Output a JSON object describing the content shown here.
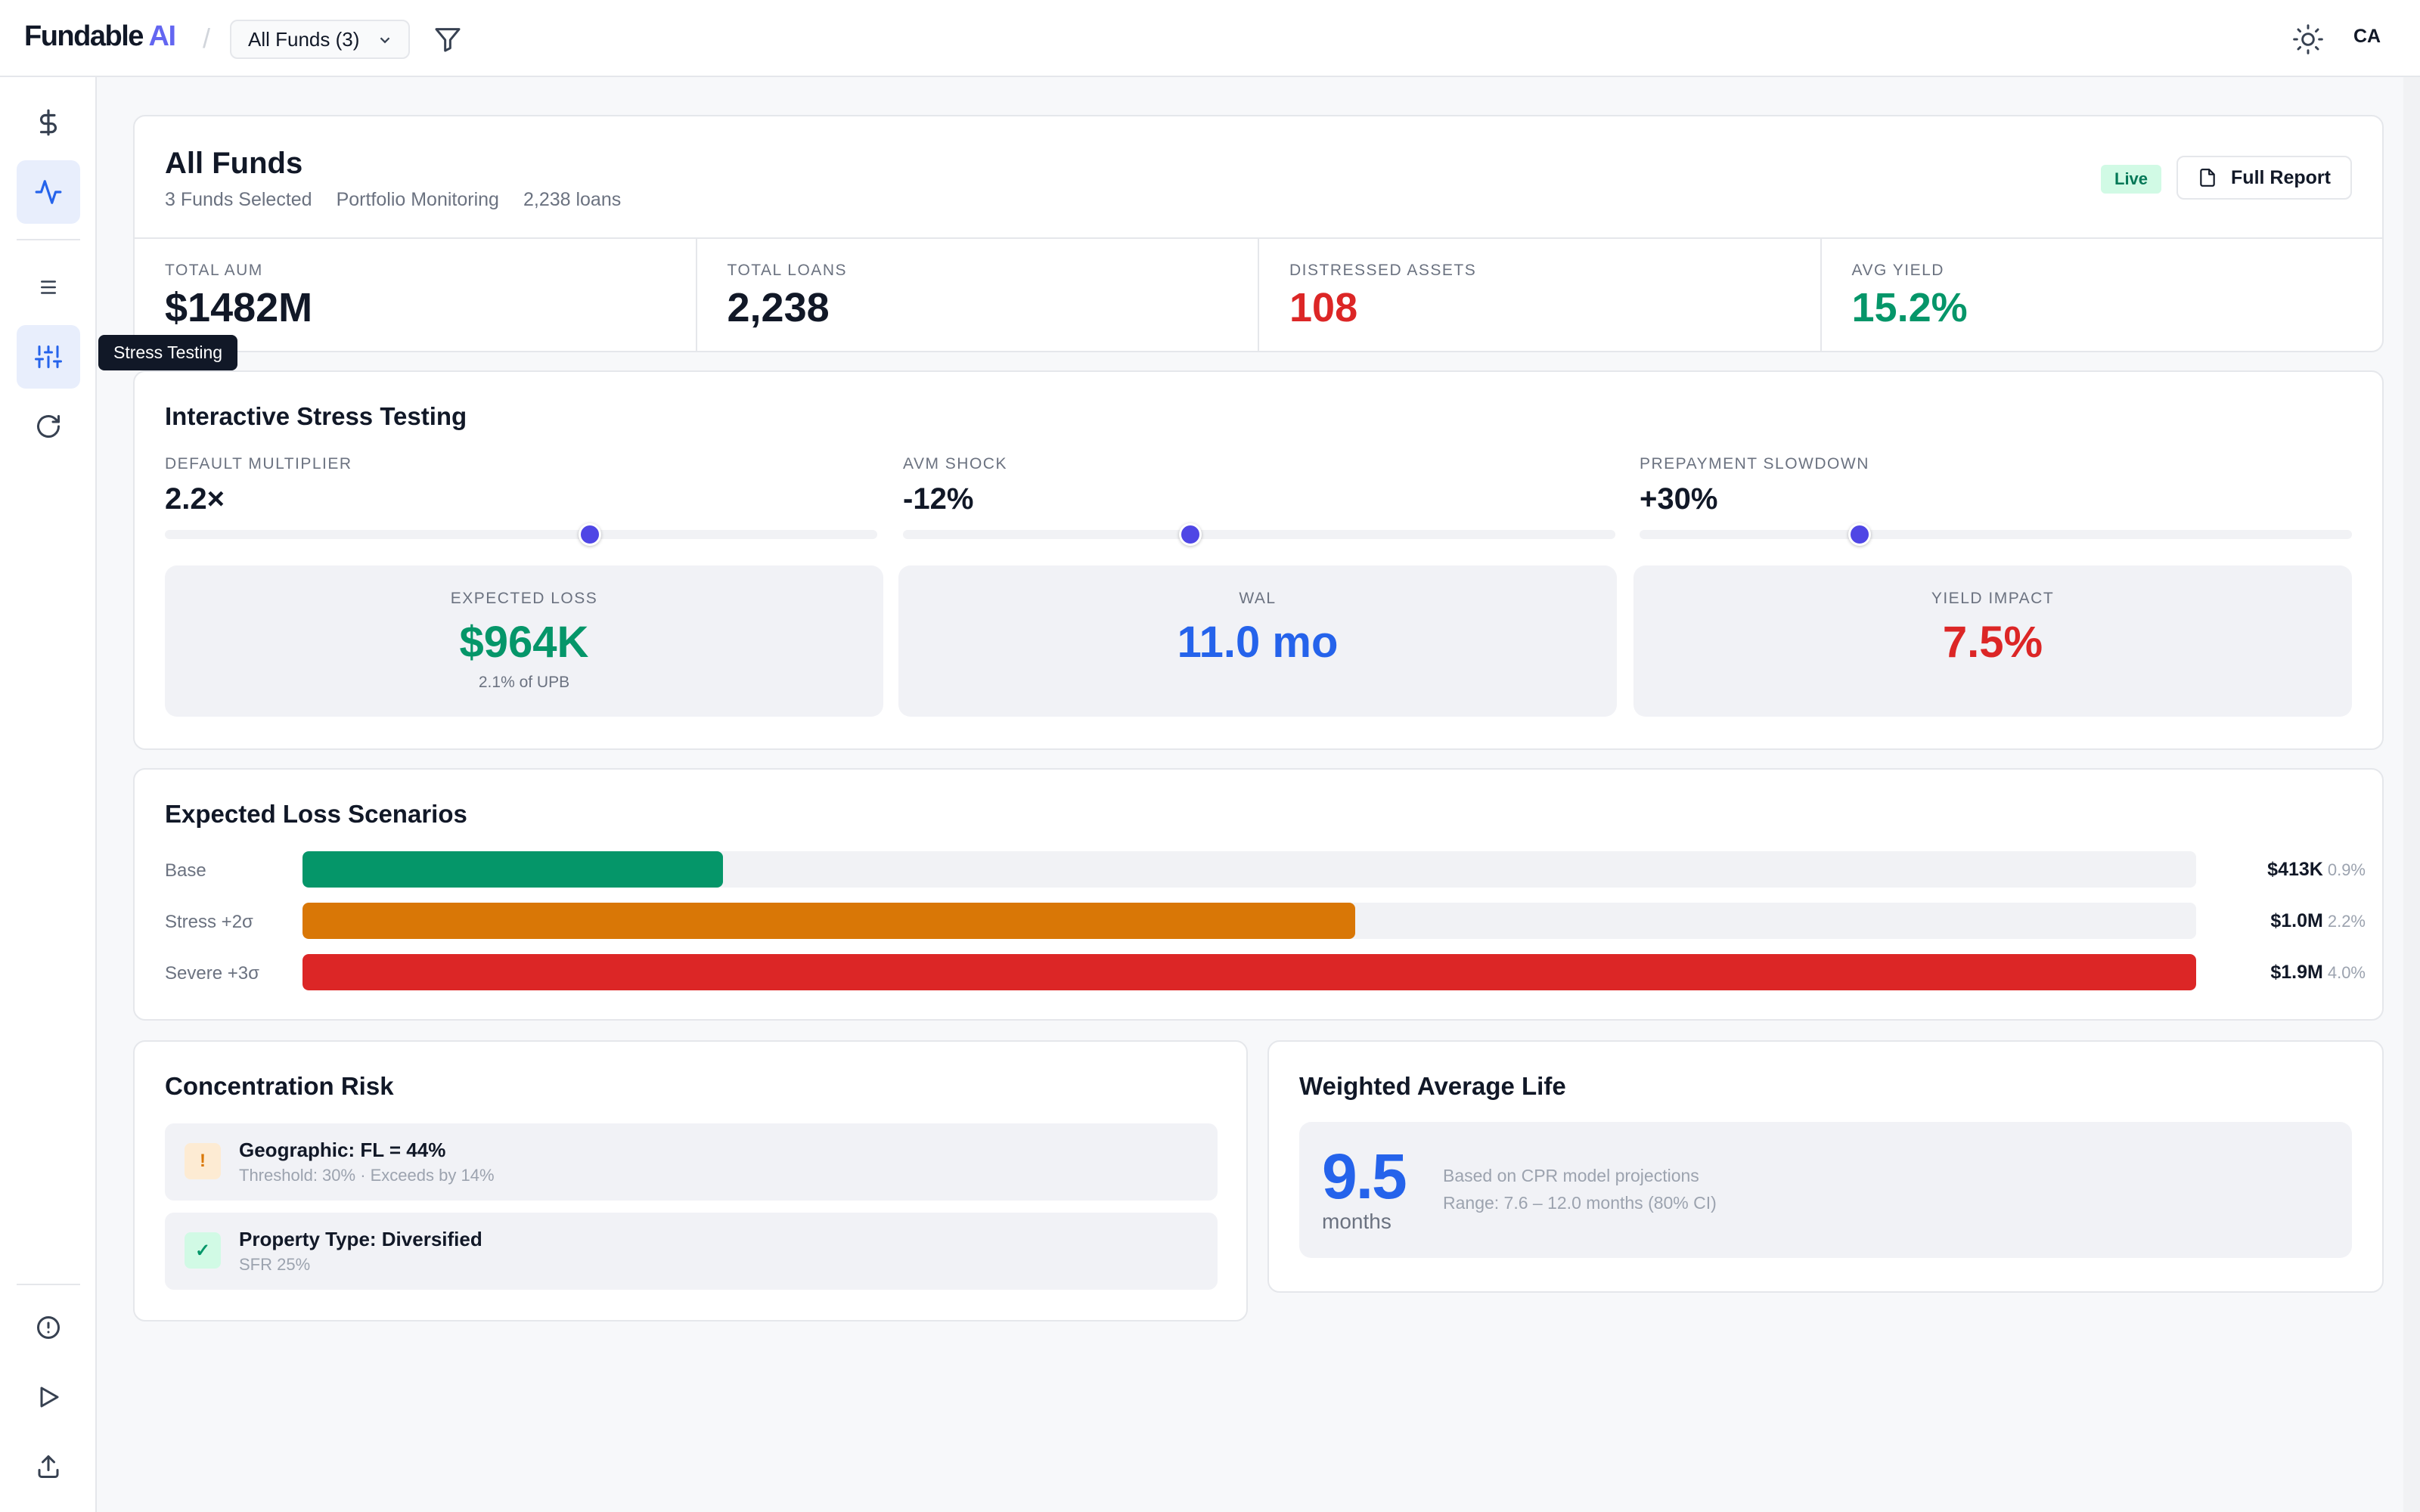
{
  "brand": {
    "name": "Fundable",
    "accent": "AI"
  },
  "topbar": {
    "fund_selector": "All Funds (3)",
    "avatar": "CA"
  },
  "sidebar": {
    "tooltip": "Stress Testing"
  },
  "header": {
    "title": "All Funds",
    "meta": [
      "3 Funds Selected",
      "Portfolio Monitoring",
      "2,238 loans"
    ],
    "status_badge": "Live",
    "report_button": "Full Report",
    "kpis": [
      {
        "label": "Total AUM",
        "value": "$1482M",
        "color": "#111827"
      },
      {
        "label": "Total Loans",
        "value": "2,238",
        "color": "#111827"
      },
      {
        "label": "Distressed Assets",
        "value": "108",
        "color": "#dc2626"
      },
      {
        "label": "Avg Yield",
        "value": "15.2%",
        "color": "#059669"
      }
    ]
  },
  "stress": {
    "title": "Interactive Stress Testing",
    "sliders": [
      {
        "label": "Default Multiplier",
        "value": "2.2×",
        "position": 0.597
      },
      {
        "label": "AVM Shock",
        "value": "-12%",
        "position": 0.403
      },
      {
        "label": "Prepayment Slowdown",
        "value": "+30%",
        "position": 0.309
      }
    ],
    "metrics": [
      {
        "label": "Expected Loss",
        "value": "$964K",
        "sub": "2.1% of UPB",
        "color": "#059669"
      },
      {
        "label": "WAL",
        "value": "11.0 mo",
        "sub": "",
        "color": "#2563eb"
      },
      {
        "label": "Yield Impact",
        "value": "7.5%",
        "sub": "",
        "color": "#dc2626"
      }
    ]
  },
  "scenarios": {
    "title": "Expected Loss Scenarios",
    "rows": [
      {
        "label": "Base",
        "amount": "$413K",
        "pct": "0.9%",
        "fill": 0.222,
        "color": "#059669"
      },
      {
        "label": "Stress +2σ",
        "amount": "$1.0M",
        "pct": "2.2%",
        "fill": 0.556,
        "color": "#d97706"
      },
      {
        "label": "Severe +3σ",
        "amount": "$1.9M",
        "pct": "4.0%",
        "fill": 1.0,
        "color": "#dc2626"
      }
    ]
  },
  "concentration": {
    "title": "Concentration Risk",
    "items": [
      {
        "icon": "!",
        "title": "Geographic: FL = 44%",
        "sub": "Threshold: 30% · Exceeds by 14%"
      },
      {
        "icon": "✓",
        "title": "Property Type: Diversified",
        "sub": "SFR 25%"
      }
    ]
  },
  "wal": {
    "title": "Weighted Average Life",
    "value": "9.5",
    "unit": "months",
    "note1": "Based on CPR model projections",
    "note2": "Range: 7.6 – 12.0 months (80% CI)"
  }
}
